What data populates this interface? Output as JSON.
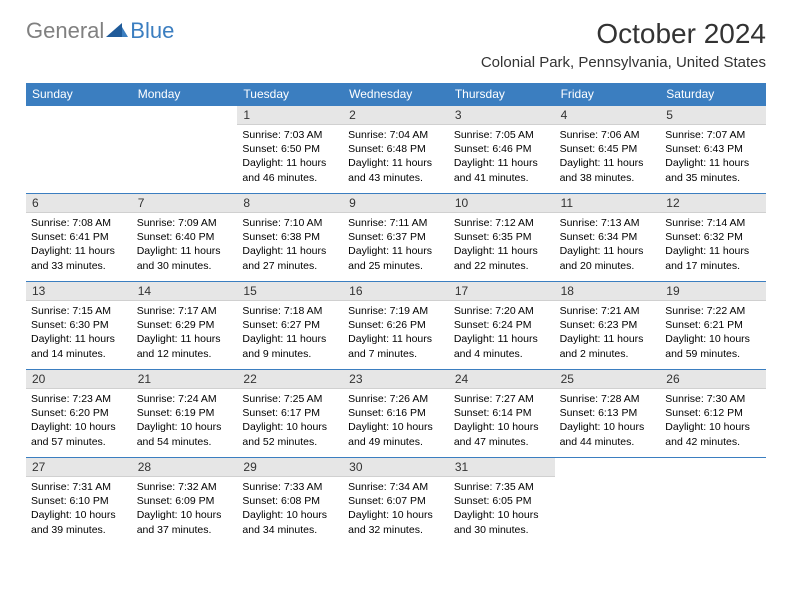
{
  "logo": {
    "part1": "General",
    "part2": "Blue"
  },
  "title": "October 2024",
  "location": "Colonial Park, Pennsylvania, United States",
  "colors": {
    "header_bg": "#3b7ec0",
    "header_text": "#ffffff",
    "daynum_bg": "#e6e6e6",
    "text": "#000000",
    "border": "#3b7ec0"
  },
  "weekdays": [
    "Sunday",
    "Monday",
    "Tuesday",
    "Wednesday",
    "Thursday",
    "Friday",
    "Saturday"
  ],
  "grid": [
    [
      {
        "day": "",
        "empty": true
      },
      {
        "day": "",
        "empty": true
      },
      {
        "day": "1",
        "sunrise": "Sunrise: 7:03 AM",
        "sunset": "Sunset: 6:50 PM",
        "daylight": "Daylight: 11 hours and 46 minutes."
      },
      {
        "day": "2",
        "sunrise": "Sunrise: 7:04 AM",
        "sunset": "Sunset: 6:48 PM",
        "daylight": "Daylight: 11 hours and 43 minutes."
      },
      {
        "day": "3",
        "sunrise": "Sunrise: 7:05 AM",
        "sunset": "Sunset: 6:46 PM",
        "daylight": "Daylight: 11 hours and 41 minutes."
      },
      {
        "day": "4",
        "sunrise": "Sunrise: 7:06 AM",
        "sunset": "Sunset: 6:45 PM",
        "daylight": "Daylight: 11 hours and 38 minutes."
      },
      {
        "day": "5",
        "sunrise": "Sunrise: 7:07 AM",
        "sunset": "Sunset: 6:43 PM",
        "daylight": "Daylight: 11 hours and 35 minutes."
      }
    ],
    [
      {
        "day": "6",
        "sunrise": "Sunrise: 7:08 AM",
        "sunset": "Sunset: 6:41 PM",
        "daylight": "Daylight: 11 hours and 33 minutes."
      },
      {
        "day": "7",
        "sunrise": "Sunrise: 7:09 AM",
        "sunset": "Sunset: 6:40 PM",
        "daylight": "Daylight: 11 hours and 30 minutes."
      },
      {
        "day": "8",
        "sunrise": "Sunrise: 7:10 AM",
        "sunset": "Sunset: 6:38 PM",
        "daylight": "Daylight: 11 hours and 27 minutes."
      },
      {
        "day": "9",
        "sunrise": "Sunrise: 7:11 AM",
        "sunset": "Sunset: 6:37 PM",
        "daylight": "Daylight: 11 hours and 25 minutes."
      },
      {
        "day": "10",
        "sunrise": "Sunrise: 7:12 AM",
        "sunset": "Sunset: 6:35 PM",
        "daylight": "Daylight: 11 hours and 22 minutes."
      },
      {
        "day": "11",
        "sunrise": "Sunrise: 7:13 AM",
        "sunset": "Sunset: 6:34 PM",
        "daylight": "Daylight: 11 hours and 20 minutes."
      },
      {
        "day": "12",
        "sunrise": "Sunrise: 7:14 AM",
        "sunset": "Sunset: 6:32 PM",
        "daylight": "Daylight: 11 hours and 17 minutes."
      }
    ],
    [
      {
        "day": "13",
        "sunrise": "Sunrise: 7:15 AM",
        "sunset": "Sunset: 6:30 PM",
        "daylight": "Daylight: 11 hours and 14 minutes."
      },
      {
        "day": "14",
        "sunrise": "Sunrise: 7:17 AM",
        "sunset": "Sunset: 6:29 PM",
        "daylight": "Daylight: 11 hours and 12 minutes."
      },
      {
        "day": "15",
        "sunrise": "Sunrise: 7:18 AM",
        "sunset": "Sunset: 6:27 PM",
        "daylight": "Daylight: 11 hours and 9 minutes."
      },
      {
        "day": "16",
        "sunrise": "Sunrise: 7:19 AM",
        "sunset": "Sunset: 6:26 PM",
        "daylight": "Daylight: 11 hours and 7 minutes."
      },
      {
        "day": "17",
        "sunrise": "Sunrise: 7:20 AM",
        "sunset": "Sunset: 6:24 PM",
        "daylight": "Daylight: 11 hours and 4 minutes."
      },
      {
        "day": "18",
        "sunrise": "Sunrise: 7:21 AM",
        "sunset": "Sunset: 6:23 PM",
        "daylight": "Daylight: 11 hours and 2 minutes."
      },
      {
        "day": "19",
        "sunrise": "Sunrise: 7:22 AM",
        "sunset": "Sunset: 6:21 PM",
        "daylight": "Daylight: 10 hours and 59 minutes."
      }
    ],
    [
      {
        "day": "20",
        "sunrise": "Sunrise: 7:23 AM",
        "sunset": "Sunset: 6:20 PM",
        "daylight": "Daylight: 10 hours and 57 minutes."
      },
      {
        "day": "21",
        "sunrise": "Sunrise: 7:24 AM",
        "sunset": "Sunset: 6:19 PM",
        "daylight": "Daylight: 10 hours and 54 minutes."
      },
      {
        "day": "22",
        "sunrise": "Sunrise: 7:25 AM",
        "sunset": "Sunset: 6:17 PM",
        "daylight": "Daylight: 10 hours and 52 minutes."
      },
      {
        "day": "23",
        "sunrise": "Sunrise: 7:26 AM",
        "sunset": "Sunset: 6:16 PM",
        "daylight": "Daylight: 10 hours and 49 minutes."
      },
      {
        "day": "24",
        "sunrise": "Sunrise: 7:27 AM",
        "sunset": "Sunset: 6:14 PM",
        "daylight": "Daylight: 10 hours and 47 minutes."
      },
      {
        "day": "25",
        "sunrise": "Sunrise: 7:28 AM",
        "sunset": "Sunset: 6:13 PM",
        "daylight": "Daylight: 10 hours and 44 minutes."
      },
      {
        "day": "26",
        "sunrise": "Sunrise: 7:30 AM",
        "sunset": "Sunset: 6:12 PM",
        "daylight": "Daylight: 10 hours and 42 minutes."
      }
    ],
    [
      {
        "day": "27",
        "sunrise": "Sunrise: 7:31 AM",
        "sunset": "Sunset: 6:10 PM",
        "daylight": "Daylight: 10 hours and 39 minutes."
      },
      {
        "day": "28",
        "sunrise": "Sunrise: 7:32 AM",
        "sunset": "Sunset: 6:09 PM",
        "daylight": "Daylight: 10 hours and 37 minutes."
      },
      {
        "day": "29",
        "sunrise": "Sunrise: 7:33 AM",
        "sunset": "Sunset: 6:08 PM",
        "daylight": "Daylight: 10 hours and 34 minutes."
      },
      {
        "day": "30",
        "sunrise": "Sunrise: 7:34 AM",
        "sunset": "Sunset: 6:07 PM",
        "daylight": "Daylight: 10 hours and 32 minutes."
      },
      {
        "day": "31",
        "sunrise": "Sunrise: 7:35 AM",
        "sunset": "Sunset: 6:05 PM",
        "daylight": "Daylight: 10 hours and 30 minutes."
      },
      {
        "day": "",
        "empty": true
      },
      {
        "day": "",
        "empty": true
      }
    ]
  ]
}
